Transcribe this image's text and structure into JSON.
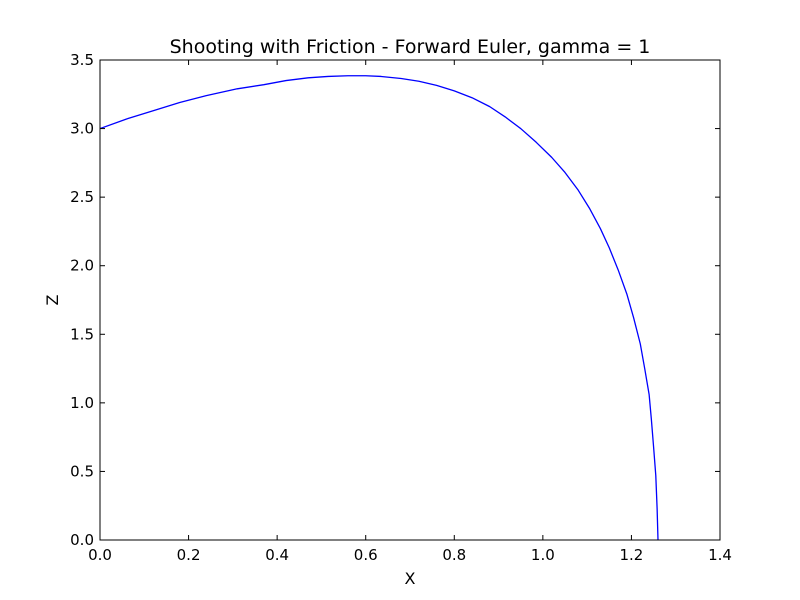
{
  "chart_data": {
    "type": "line",
    "title": "Shooting with Friction - Forward Euler, gamma = 1",
    "xlabel": "X",
    "ylabel": "Z",
    "xlim": [
      0.0,
      1.4
    ],
    "ylim": [
      0.0,
      3.5
    ],
    "x_ticks": [
      "0.0",
      "0.2",
      "0.4",
      "0.6",
      "0.8",
      "1.0",
      "1.2",
      "1.4"
    ],
    "y_ticks": [
      "0.0",
      "0.5",
      "1.0",
      "1.5",
      "2.0",
      "2.5",
      "3.0",
      "3.5"
    ],
    "grid": false,
    "series": [
      {
        "color": "#0000ff",
        "x": [
          0.0,
          0.06,
          0.12,
          0.18,
          0.24,
          0.31,
          0.37,
          0.42,
          0.47,
          0.515,
          0.56,
          0.6,
          0.635,
          0.68,
          0.72,
          0.76,
          0.8,
          0.84,
          0.88,
          0.915,
          0.95,
          0.985,
          1.02,
          1.05,
          1.08,
          1.105,
          1.13,
          1.15,
          1.17,
          1.19,
          1.205,
          1.22,
          1.23,
          1.24,
          1.245,
          1.25,
          1.255,
          1.258,
          1.26
        ],
        "y": [
          3.0,
          3.07,
          3.13,
          3.19,
          3.24,
          3.29,
          3.32,
          3.35,
          3.37,
          3.38,
          3.385,
          3.385,
          3.38,
          3.365,
          3.345,
          3.315,
          3.275,
          3.225,
          3.16,
          3.085,
          3.0,
          2.9,
          2.79,
          2.68,
          2.55,
          2.42,
          2.27,
          2.13,
          1.97,
          1.79,
          1.62,
          1.43,
          1.25,
          1.06,
          0.88,
          0.68,
          0.47,
          0.23,
          0.0
        ]
      }
    ]
  }
}
